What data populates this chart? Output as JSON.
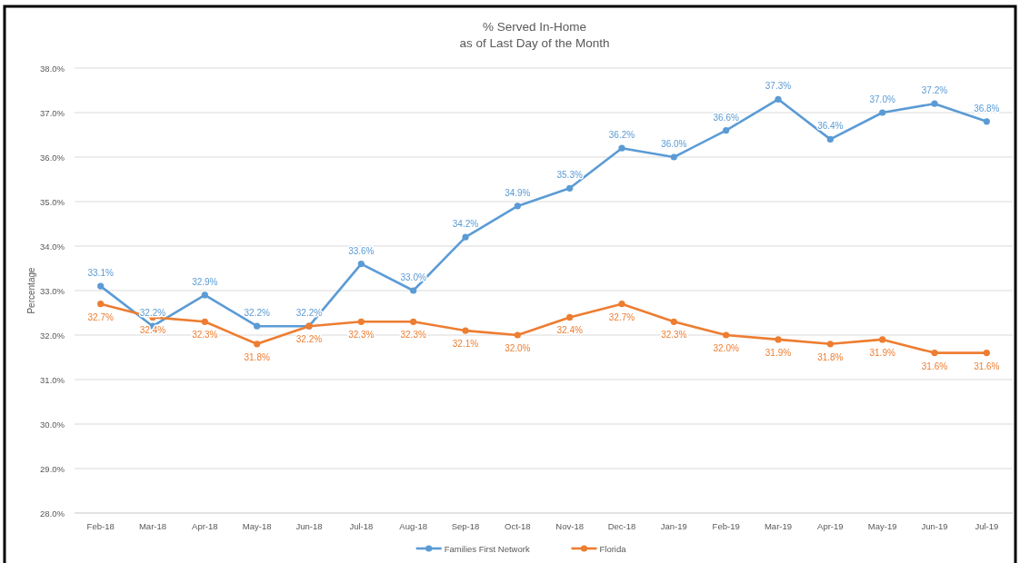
{
  "chart_data": {
    "type": "line",
    "title": "% Served In-Home",
    "subtitle": "as of Last Day of the Month",
    "ylabel": "Percentage",
    "categories": [
      "Feb-18",
      "Mar-18",
      "Apr-18",
      "May-18",
      "Jun-18",
      "Jul-18",
      "Aug-18",
      "Sep-18",
      "Oct-18",
      "Nov-18",
      "Dec-18",
      "Jan-19",
      "Feb-19",
      "Mar-19",
      "Apr-19",
      "May-19",
      "Jun-19",
      "Jul-19"
    ],
    "series": [
      {
        "name": "Families First Network",
        "color": "#5b9bd5",
        "values": [
          33.1,
          32.2,
          32.9,
          32.2,
          32.2,
          33.6,
          33.0,
          34.2,
          34.9,
          35.3,
          36.2,
          36.0,
          36.6,
          37.3,
          36.4,
          37.0,
          37.2,
          36.8
        ],
        "value_labels": [
          "33.1%",
          "32.2%",
          "32.9%",
          "32.2%",
          "32.2%",
          "33.6%",
          "33.0%",
          "34.2%",
          "34.9%",
          "35.3%",
          "36.2%",
          "36.0%",
          "36.6%",
          "37.3%",
          "36.4%",
          "37.0%",
          "37.2%",
          "36.8%"
        ]
      },
      {
        "name": "Florida",
        "color": "#ed7d31",
        "values": [
          32.7,
          32.4,
          32.3,
          31.8,
          32.2,
          32.3,
          32.3,
          32.1,
          32.0,
          32.4,
          32.7,
          32.3,
          32.0,
          31.9,
          31.8,
          31.9,
          31.6,
          31.6
        ],
        "value_labels": [
          "32.7%",
          "32.4%",
          "32.3%",
          "31.8%",
          "32.2%",
          "32.3%",
          "32.3%",
          "32.1%",
          "32.0%",
          "32.4%",
          "32.7%",
          "32.3%",
          "32.0%",
          "31.9%",
          "31.8%",
          "31.9%",
          "31.6%",
          "31.6%"
        ]
      }
    ],
    "ylim": [
      28,
      38
    ],
    "yticks": [
      {
        "value": 28,
        "label": "28.0%"
      },
      {
        "value": 29,
        "label": "29.0%"
      },
      {
        "value": 30,
        "label": "30.0%"
      },
      {
        "value": 31,
        "label": "31.0%"
      },
      {
        "value": 32,
        "label": "32.0%"
      },
      {
        "value": 33,
        "label": "33.0%"
      },
      {
        "value": 34,
        "label": "34.0%"
      },
      {
        "value": 35,
        "label": "35.0%"
      },
      {
        "value": 36,
        "label": "36.0%"
      },
      {
        "value": 37,
        "label": "37.0%"
      },
      {
        "value": 38,
        "label": "38.0%"
      }
    ],
    "grid": "y",
    "legend": "bottom",
    "marker": "circle"
  }
}
